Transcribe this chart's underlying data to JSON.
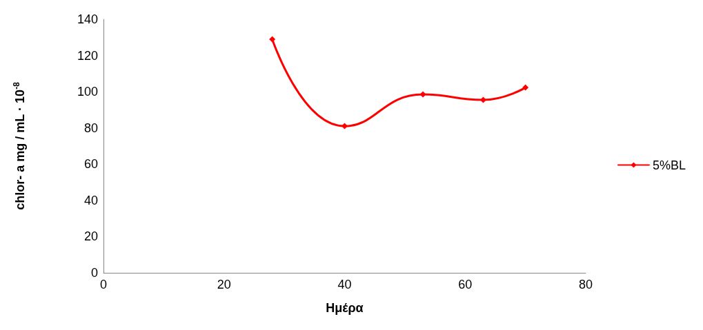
{
  "chart_data": {
    "type": "line",
    "xlabel": "Ημέρα",
    "ylabel": "chlor- a mg / mL · 10$^{-8}$",
    "x": [
      28,
      40,
      53,
      63,
      70
    ],
    "series": [
      {
        "name": "5%BL",
        "color": "#ff0000",
        "values": [
          129,
          81,
          98.5,
          95.5,
          102.3
        ]
      }
    ],
    "xlim": [
      0,
      80
    ],
    "xticks": [
      0,
      20,
      40,
      60,
      80
    ],
    "ylim": [
      0,
      140
    ],
    "yticks": [
      0,
      20,
      40,
      60,
      80,
      100,
      120,
      140
    ],
    "grid": false,
    "legend": "right",
    "marker": "diamond",
    "line_style": "solid"
  }
}
